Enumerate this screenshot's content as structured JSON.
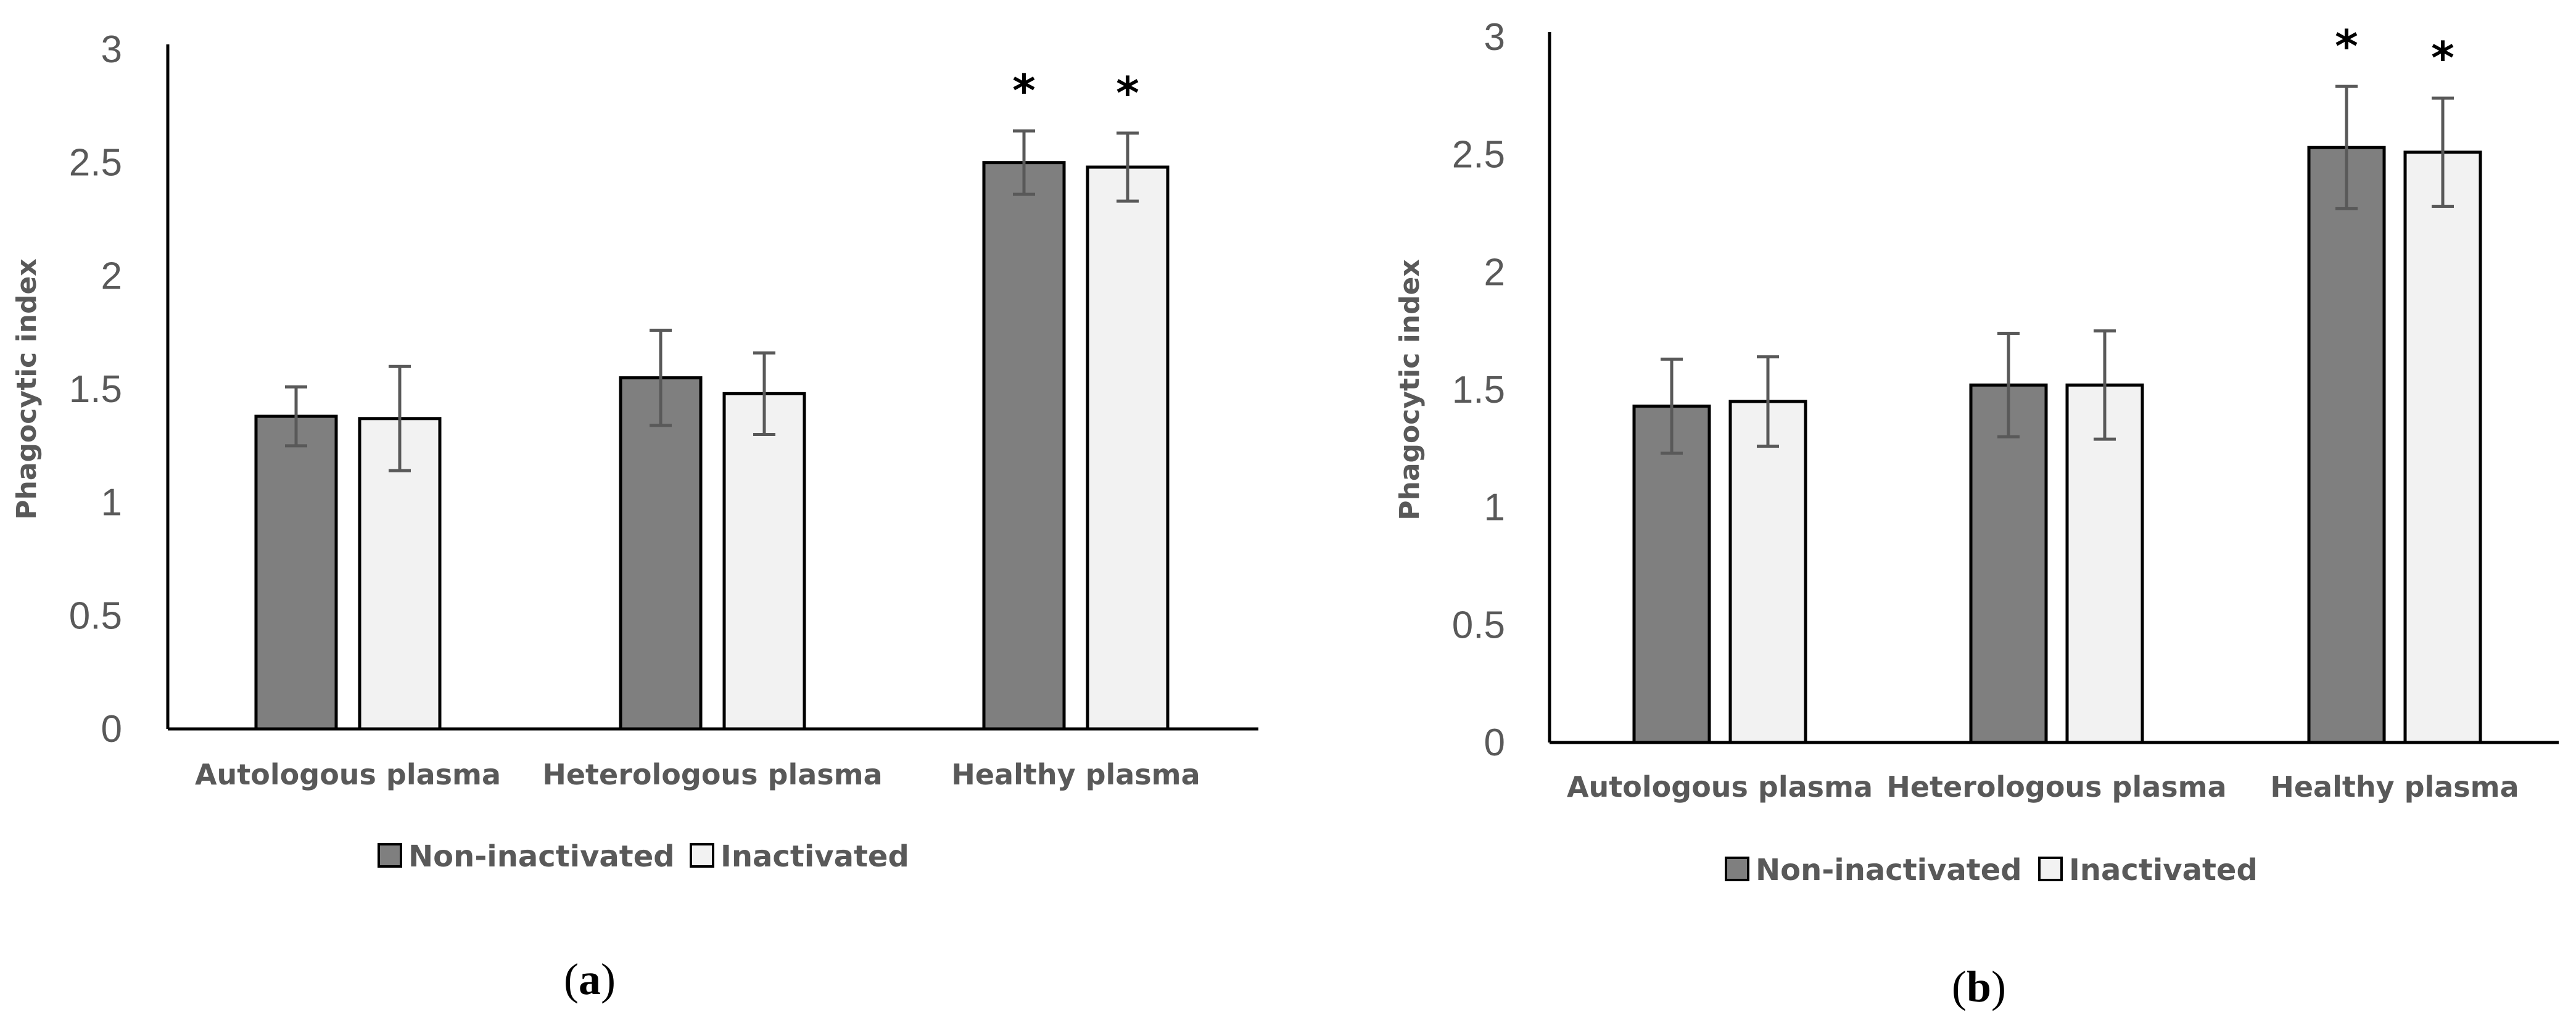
{
  "chart_data": [
    {
      "type": "bar",
      "caption_label": "a",
      "ylabel": "Phagocytic index",
      "xlabel": "",
      "ylim": [
        0,
        3
      ],
      "yticks": [
        "0",
        "0.5",
        "1",
        "1.5",
        "2",
        "2.5",
        "3"
      ],
      "categories": [
        "Autologous plasma",
        "Heterologous plasma",
        "Healthy plasma"
      ],
      "series": [
        {
          "name": "Non-inactivated",
          "values": [
            1.38,
            1.55,
            2.5
          ],
          "errors": [
            0.13,
            0.21,
            0.14
          ],
          "color": "#7f7f7f"
        },
        {
          "name": "Inactivated",
          "values": [
            1.37,
            1.48,
            2.48
          ],
          "errors": [
            0.23,
            0.18,
            0.15
          ],
          "color": "#f2f2f2"
        }
      ],
      "annotations": [
        {
          "text": "*",
          "category": 2,
          "series": 0
        },
        {
          "text": "*",
          "category": 2,
          "series": 1
        }
      ],
      "grid": false,
      "legend": "bottom"
    },
    {
      "type": "bar",
      "caption_label": "b",
      "ylabel": "Phagocytic index",
      "xlabel": "",
      "ylim": [
        0,
        3
      ],
      "yticks": [
        "0",
        "0.5",
        "1",
        "1.5",
        "2",
        "2.5",
        "3"
      ],
      "categories": [
        "Autologous plasma",
        "Heterologous plasma",
        "Healthy plasma"
      ],
      "series": [
        {
          "name": "Non-inactivated",
          "values": [
            1.43,
            1.52,
            2.53
          ],
          "errors": [
            0.2,
            0.22,
            0.26
          ],
          "color": "#7f7f7f"
        },
        {
          "name": "Inactivated",
          "values": [
            1.45,
            1.52,
            2.51
          ],
          "errors": [
            0.19,
            0.23,
            0.23
          ],
          "color": "#f2f2f2"
        }
      ],
      "annotations": [
        {
          "text": "*",
          "category": 2,
          "series": 0
        },
        {
          "text": "*",
          "category": 2,
          "series": 1
        }
      ],
      "grid": false,
      "legend": "bottom"
    }
  ]
}
